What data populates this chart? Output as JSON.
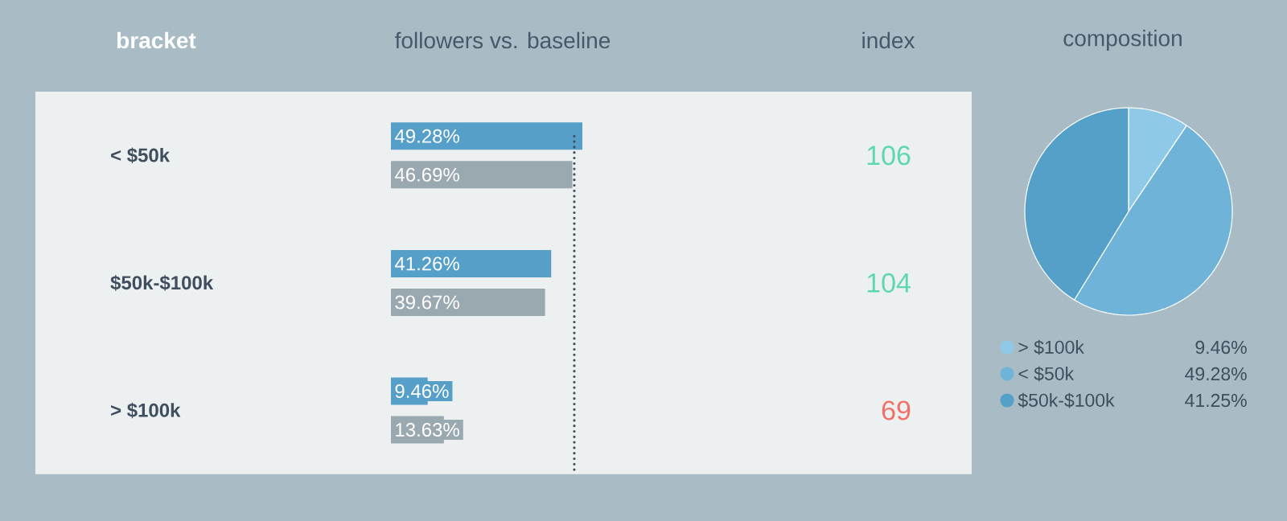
{
  "chart_data": [
    {
      "type": "bar",
      "orientation": "horizontal",
      "title": "followers vs. baseline",
      "ylabel": "bracket",
      "categories": [
        "< $50k",
        "$50k-$100k",
        "> $100k"
      ],
      "series": [
        {
          "color": "#559fc9",
          "values": [
            49.28,
            41.26,
            9.46
          ],
          "value_labels": [
            "49.28%",
            "41.26%",
            "9.46%"
          ]
        },
        {
          "color": "#9aa9af",
          "values": [
            46.69,
            39.67,
            13.63
          ],
          "value_labels": [
            "46.69%",
            "39.67%",
            "13.63%"
          ]
        }
      ],
      "ref_lines": [
        {
          "axis": "x",
          "value": 47.2,
          "line_style": "dotted",
          "color": "#3f4e5e"
        }
      ]
    },
    {
      "type": "other",
      "title": "index",
      "annotations": [
        "106",
        "104",
        "69"
      ],
      "colors": [
        "#5fd6b3",
        "#5fd6b3",
        "#f26f66"
      ]
    },
    {
      "type": "pie",
      "title": "composition",
      "categories": [
        "> $100k",
        "< $50k",
        "$50k-$100k"
      ],
      "values": [
        9.46,
        49.28,
        41.25
      ],
      "value_labels": [
        "9.46%",
        "49.28%",
        "41.25%"
      ],
      "colors": [
        "#8ecae8",
        "#6fb3d8",
        "#54a0c8"
      ],
      "legend": "bottom"
    }
  ]
}
